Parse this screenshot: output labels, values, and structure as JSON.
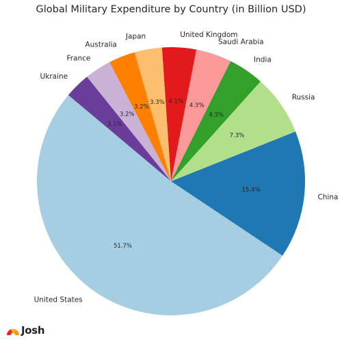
{
  "chart_data": {
    "type": "pie",
    "title": "Global Military Expenditure by Country (in Billion USD)",
    "categories": [
      "United States",
      "China",
      "Russia",
      "India",
      "Saudi Arabia",
      "United Kingdom",
      "Japan",
      "Australia",
      "France",
      "Ukraine"
    ],
    "values": [
      51.7,
      15.4,
      7.3,
      4.3,
      4.3,
      4.1,
      3.3,
      3.2,
      3.2,
      3.1
    ],
    "percent_labels": [
      "51.7%",
      "15.4%",
      "7.3%",
      "4.3%",
      "4.3%",
      "4.1%",
      "3.3%",
      "3.2%",
      "3.2%",
      "3.1%"
    ],
    "colors": [
      "#a6cee3",
      "#1f78b4",
      "#b2df8a",
      "#33a02c",
      "#fb9a99",
      "#e31a1c",
      "#fdbf6f",
      "#ff7f00",
      "#cab2d6",
      "#6a3d9a"
    ],
    "start_angle_deg": 140,
    "direction": "counterclockwise"
  },
  "branding": {
    "logo_text": "Josh",
    "logo_icon": "sun-rays-logo-icon"
  }
}
